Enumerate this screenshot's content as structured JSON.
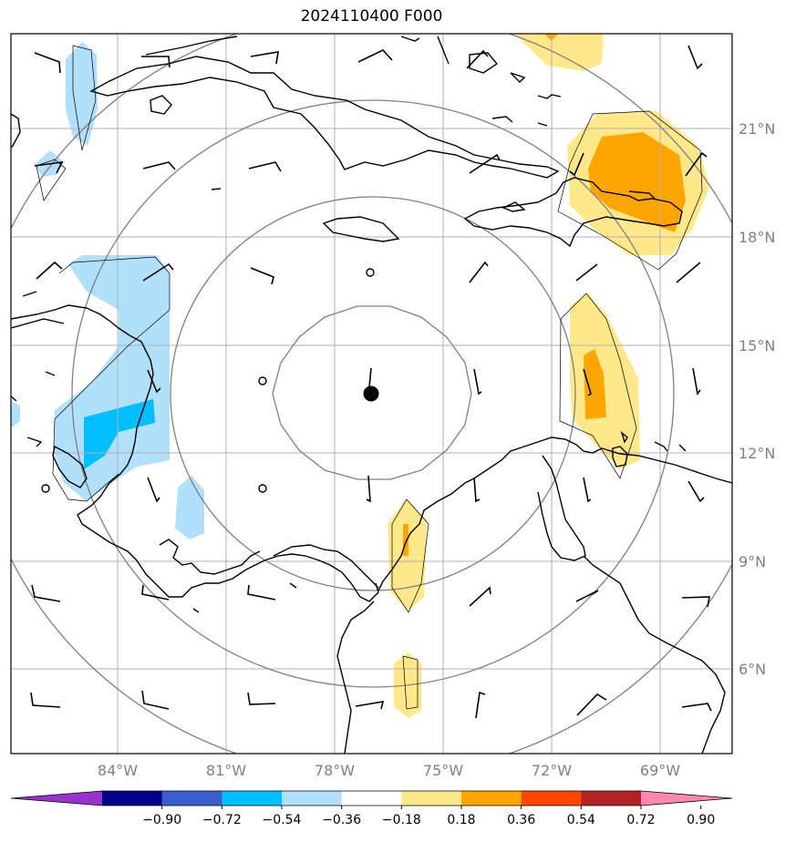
{
  "title": "2024110400 F000",
  "latitude_labels": [
    "21°N",
    "18°N",
    "15°N",
    "12°N",
    "9°N",
    "6°N"
  ],
  "longitude_labels": [
    "84°W",
    "81°W",
    "78°W",
    "75°W",
    "72°W",
    "69°W"
  ],
  "colorbar": {
    "tick_labels": [
      "−0.90",
      "−0.72",
      "−0.54",
      "−0.36",
      "−0.18",
      "0.18",
      "0.36",
      "0.54",
      "0.72",
      "0.90"
    ],
    "colors": [
      "#9932cc",
      "#00008b",
      "#3a5fcd",
      "#00bfff",
      "#b0e0fa",
      "#ffffff",
      "#ffe88a",
      "#ffa500",
      "#ff4500",
      "#b22222",
      "#ff86b0"
    ]
  },
  "colors": {
    "grid": "#b0b0b0",
    "range_rings": "#808080",
    "coast": "#000000",
    "light_blue": "#b0e0fa",
    "medium_blue": "#00bfff",
    "light_yellow": "#ffe88a",
    "orange": "#ffa500"
  }
}
